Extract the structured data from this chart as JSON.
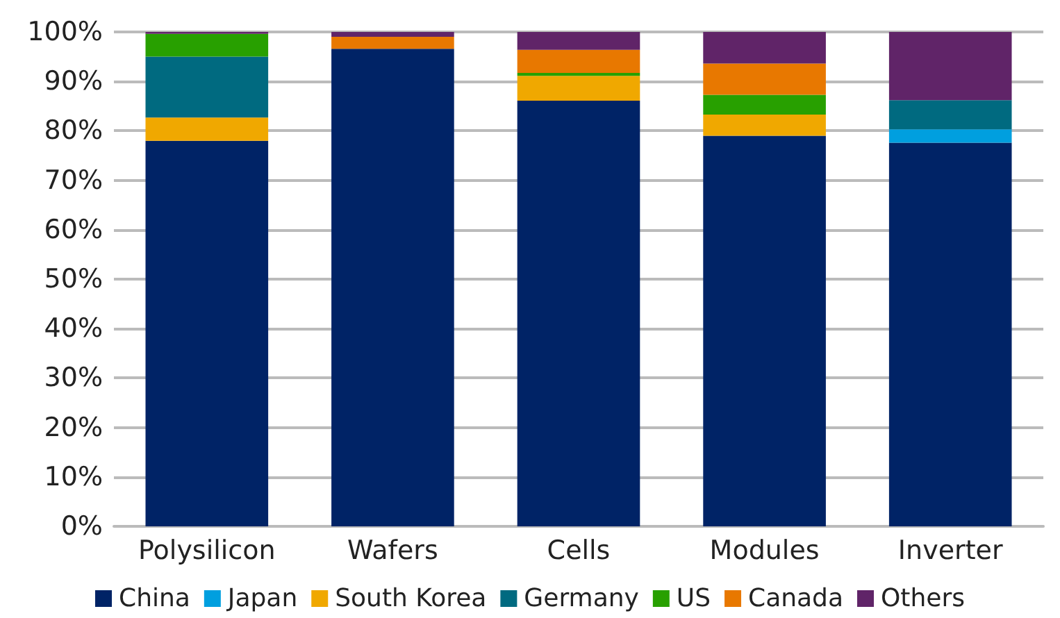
{
  "chart_data": {
    "type": "bar",
    "stacked": true,
    "categories": [
      "Polysilicon",
      "Wafers",
      "Cells",
      "Modules",
      "Inverter"
    ],
    "series": [
      {
        "name": "China",
        "color": "#002366",
        "values": [
          78,
          96.6,
          86.1,
          79,
          77.6
        ]
      },
      {
        "name": "Japan",
        "color": "#009fdf",
        "values": [
          null,
          null,
          null,
          null,
          2.7
        ]
      },
      {
        "name": "South Korea",
        "color": "#f0a800",
        "values": [
          4.7,
          null,
          5,
          4.3,
          null
        ]
      },
      {
        "name": "Germany",
        "color": "#006a80",
        "values": [
          12.3,
          null,
          null,
          null,
          5.9
        ]
      },
      {
        "name": "US",
        "color": "#28a000",
        "values": [
          4.6,
          null,
          0.6,
          4,
          null
        ]
      },
      {
        "name": "Canada",
        "color": "#e87800",
        "values": [
          null,
          2.4,
          4.7,
          6.3,
          null
        ]
      },
      {
        "name": "Others",
        "color": "#602468",
        "values": [
          0.4,
          1,
          3.6,
          6.4,
          13.8
        ]
      }
    ],
    "ylim": [
      0,
      100
    ],
    "yticks": [
      {
        "value": 0,
        "label": "0%"
      },
      {
        "value": 10,
        "label": "10%"
      },
      {
        "value": 20,
        "label": "20%"
      },
      {
        "value": 30,
        "label": "30%"
      },
      {
        "value": 40,
        "label": "40%"
      },
      {
        "value": 50,
        "label": "50%"
      },
      {
        "value": 60,
        "label": "60%"
      },
      {
        "value": 70,
        "label": "70%"
      },
      {
        "value": 80,
        "label": "80%"
      },
      {
        "value": 90,
        "label": "90%"
      },
      {
        "value": 100,
        "label": "100%"
      }
    ],
    "grid": "y",
    "legend": "bottom"
  }
}
